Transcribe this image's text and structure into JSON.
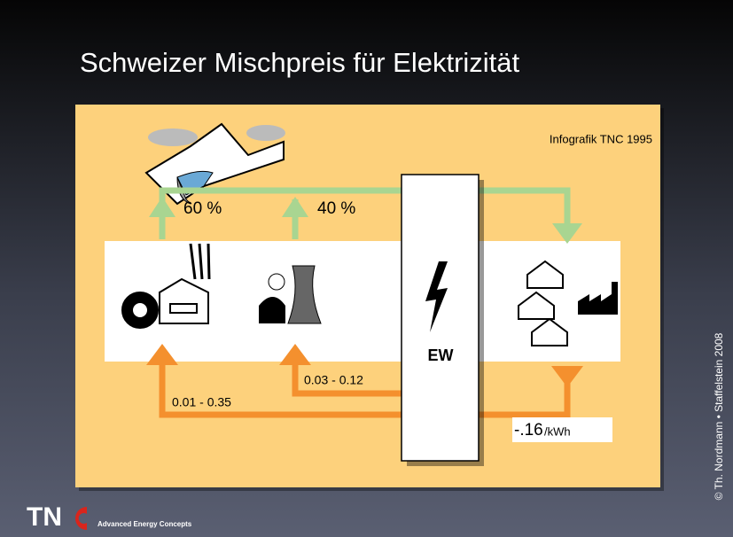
{
  "header": {
    "title": "Schweizer Mischpreis für Elektrizität"
  },
  "diagram": {
    "credit": "Infografik TNC 1995",
    "shares": [
      "60 %",
      "40 %"
    ],
    "utility": "EW",
    "costs": [
      "0.01 - 0.35",
      "0.03 - 0.12"
    ],
    "price": {
      "value": "-.16",
      "unit": "/kWh"
    }
  },
  "footer": {
    "copyright": "© Th. Nordmann • Staffelstein 2008",
    "logo": "TN",
    "tagline": "Advanced Energy Concepts"
  }
}
